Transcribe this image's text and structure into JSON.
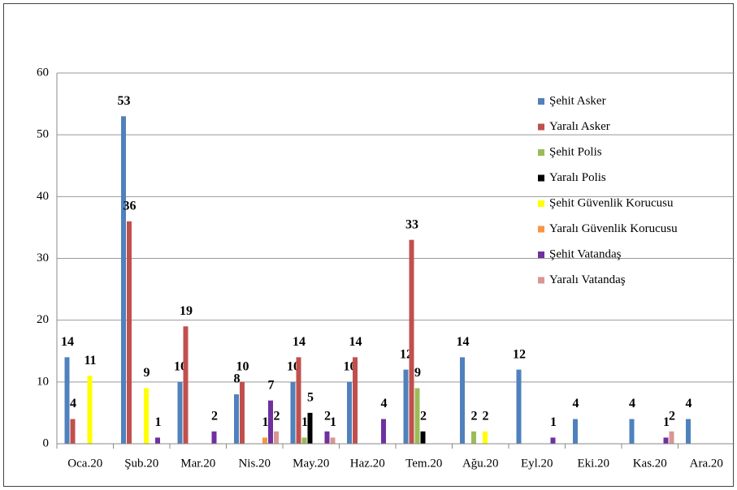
{
  "chart_data": {
    "type": "bar",
    "categories": [
      "Oca.20",
      "Şub.20",
      "Mar.20",
      "Nis.20",
      "May.20",
      "Haz.20",
      "Tem.20",
      "Ağu.20",
      "Eyl.20",
      "Eki.20",
      "Kas.20",
      "Ara.20"
    ],
    "series": [
      {
        "name": "Şehit Asker",
        "color": "#4f81bd",
        "values": [
          14,
          53,
          10,
          8,
          10,
          10,
          12,
          14,
          12,
          4,
          4,
          4
        ]
      },
      {
        "name": "Yaralı Asker",
        "color": "#c0504d",
        "values": [
          4,
          36,
          19,
          10,
          14,
          14,
          33,
          null,
          null,
          null,
          null,
          null
        ]
      },
      {
        "name": "Şehit Polis",
        "color": "#9bbb59",
        "values": [
          null,
          null,
          null,
          null,
          1,
          null,
          9,
          2,
          null,
          null,
          null,
          null
        ]
      },
      {
        "name": "Yaralı Polis",
        "color": "#000000",
        "values": [
          null,
          null,
          null,
          null,
          5,
          null,
          2,
          null,
          null,
          null,
          null,
          null
        ]
      },
      {
        "name": "Şehit Güvenlik Korucusu",
        "color": "#ffff00",
        "values": [
          11,
          9,
          null,
          null,
          null,
          null,
          null,
          2,
          null,
          null,
          null,
          null
        ]
      },
      {
        "name": "Yaralı Güvenlik Korucusu",
        "color": "#f79646",
        "values": [
          null,
          null,
          null,
          1,
          null,
          null,
          null,
          null,
          null,
          null,
          null,
          null
        ]
      },
      {
        "name": "Şehit Vatandaş",
        "color": "#7030a0",
        "values": [
          null,
          1,
          2,
          7,
          2,
          4,
          null,
          null,
          1,
          null,
          1,
          null
        ]
      },
      {
        "name": "Yaralı Vatandaş",
        "color": "#d99694",
        "values": [
          null,
          null,
          null,
          2,
          1,
          null,
          null,
          null,
          null,
          null,
          2,
          null
        ]
      }
    ],
    "ylim": [
      0,
      60
    ],
    "yticks": [
      0,
      10,
      20,
      30,
      40,
      50,
      60
    ],
    "grid": true,
    "legend": "right"
  }
}
